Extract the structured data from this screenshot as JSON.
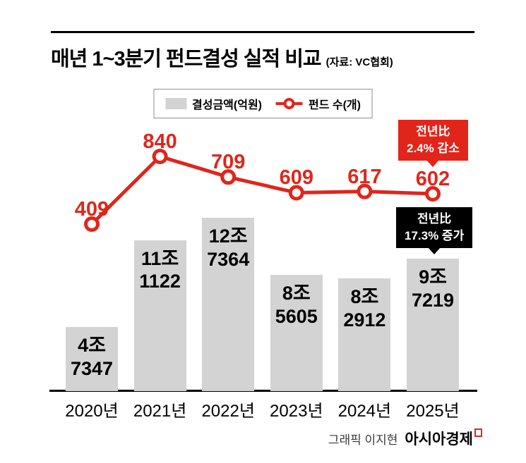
{
  "header": {
    "title": "매년 1~3분기 펀드결성 실적 비교",
    "source": "(자료: VC협회)"
  },
  "legend": {
    "bar_label": "결성금액(억원)",
    "line_label": "펀드 수(개)"
  },
  "chart_data": {
    "type": "bar",
    "subtype": "bar+line combo",
    "categories": [
      "2020년",
      "2021년",
      "2022년",
      "2023년",
      "2024년",
      "2025년"
    ],
    "series": [
      {
        "name": "결성금액(억원)",
        "type": "bar",
        "unit": "억원",
        "values": [
          47347,
          111122,
          127364,
          85605,
          82912,
          97219
        ],
        "value_labels": [
          [
            "4조",
            "7347"
          ],
          [
            "11조",
            "1122"
          ],
          [
            "12조",
            "7364"
          ],
          [
            "8조",
            "5605"
          ],
          [
            "8조",
            "2912"
          ],
          [
            "9조",
            "7219"
          ]
        ]
      },
      {
        "name": "펀드 수(개)",
        "type": "line",
        "unit": "개",
        "values": [
          409,
          840,
          709,
          609,
          617,
          602
        ]
      }
    ],
    "annotations": [
      {
        "target": "펀드 수 2025",
        "lines": [
          "전년比",
          "2.4% 감소"
        ],
        "color": "#e1251b"
      },
      {
        "target": "결성금액 2025",
        "lines": [
          "전년比",
          "17.3% 증가"
        ],
        "color": "#000000"
      }
    ],
    "legend_position": "top",
    "grid": false,
    "xlabel": "",
    "ylabel": ""
  },
  "footer": {
    "credit": "그래픽 이지현",
    "brand": "아시아경제"
  },
  "colors": {
    "line_red": "#e1251b",
    "bar_gray": "#d3d3d3",
    "badge_black": "#000000"
  }
}
